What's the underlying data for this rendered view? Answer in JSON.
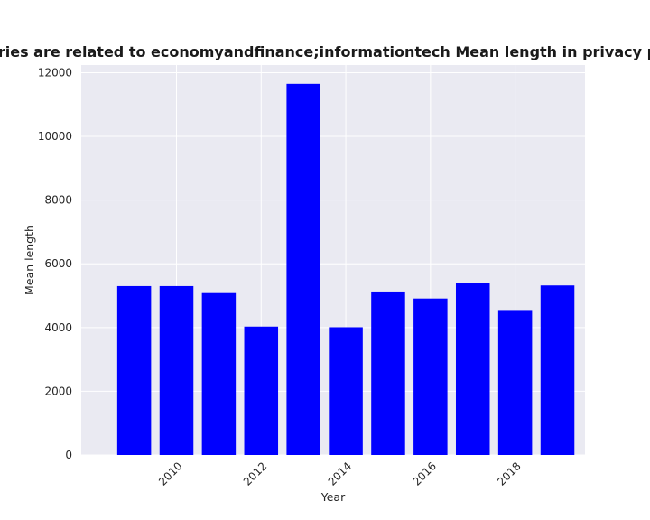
{
  "chart_data": {
    "type": "bar",
    "title": "categories are related to economyandfinance;informationtech Mean length in privacy policies",
    "xlabel": "Year",
    "ylabel": "Mean length",
    "x": [
      2009,
      2010,
      2011,
      2012,
      2013,
      2014,
      2015,
      2016,
      2017,
      2018,
      2019
    ],
    "values": [
      5300,
      5300,
      5080,
      4030,
      11650,
      4010,
      5130,
      4910,
      5390,
      4550,
      5320
    ],
    "xlim": [
      2007.75,
      2019.65
    ],
    "ylim": [
      0,
      12240
    ],
    "xticks": [
      2010,
      2012,
      2014,
      2016,
      2018
    ],
    "yticks": [
      0,
      2000,
      4000,
      6000,
      8000,
      10000,
      12000
    ],
    "bar_color": "#0000ff",
    "background_color": "#eaeaf2",
    "grid_color": "#ffffff",
    "grid": true,
    "legend": false
  }
}
